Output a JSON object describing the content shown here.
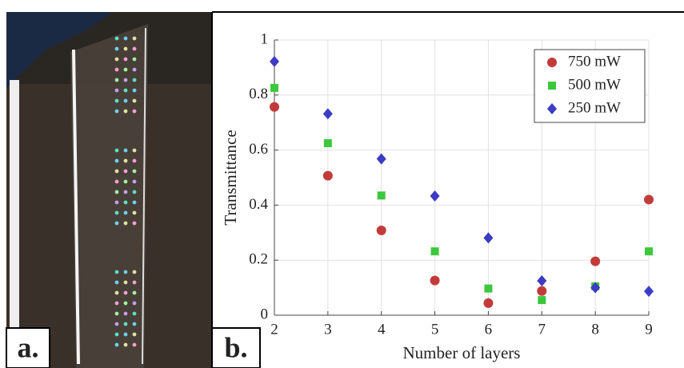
{
  "panel_labels": [
    "a.",
    "b."
  ],
  "chart_data": {
    "type": "scatter",
    "x_label": "Number of layers",
    "y_label": "Transmittance",
    "x": [
      2,
      3,
      4,
      5,
      6,
      7,
      8,
      9
    ],
    "series": [
      {
        "name": "750 mW",
        "color": "#c23b3b",
        "marker": "circle",
        "values": [
          0.757,
          0.507,
          0.308,
          0.126,
          0.044,
          0.088,
          0.196,
          0.42
        ]
      },
      {
        "name": "500 mW",
        "color": "#3cc83c",
        "marker": "square",
        "values": [
          0.826,
          0.625,
          0.435,
          0.232,
          0.097,
          0.055,
          0.105,
          0.232
        ]
      },
      {
        "name": "250 mW",
        "color": "#3c3cc4",
        "marker": "diamond",
        "values": [
          0.922,
          0.732,
          0.568,
          0.433,
          0.281,
          0.125,
          0.1,
          0.087
        ]
      }
    ],
    "xlim": [
      2,
      9
    ],
    "xticks": [
      2,
      3,
      4,
      5,
      6,
      7,
      8,
      9
    ],
    "ylim": [
      0,
      1
    ],
    "yticks": [
      0,
      0.2,
      0.4,
      0.6,
      0.8,
      1
    ],
    "grid": true,
    "legend": "top-right"
  }
}
